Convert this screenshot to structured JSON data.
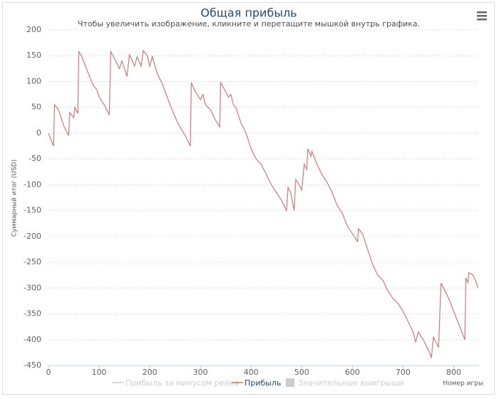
{
  "chart_data": {
    "type": "line",
    "title": "Общая прибыль",
    "subtitle": "Чтобы увеличить изображение, кликните и перетащите мышкой внутрь графика.",
    "y_label": "Суммарный итог (USD)",
    "x_label": "Номер игры",
    "x": [
      0,
      10,
      12,
      20,
      30,
      40,
      42,
      50,
      52,
      58,
      60,
      65,
      75,
      85,
      90,
      95,
      100,
      110,
      120,
      123,
      130,
      140,
      145,
      155,
      160,
      170,
      175,
      183,
      187,
      195,
      200,
      205,
      215,
      225,
      240,
      255,
      270,
      280,
      282,
      290,
      300,
      305,
      310,
      320,
      330,
      338,
      340,
      350,
      355,
      360,
      365,
      370,
      380,
      390,
      400,
      410,
      420,
      430,
      440,
      460,
      470,
      473,
      478,
      485,
      488,
      495,
      500,
      505,
      510,
      512,
      518,
      520,
      530,
      540,
      550,
      560,
      570,
      580,
      590,
      600,
      610,
      612,
      620,
      630,
      640,
      650,
      660,
      670,
      680,
      690,
      700,
      710,
      720,
      725,
      730,
      740,
      750,
      756,
      760,
      770,
      775,
      780,
      790,
      800,
      810,
      822,
      824,
      828,
      830,
      838,
      845,
      848
    ],
    "series": [
      {
        "name": "Прибыль",
        "color": "#c97a7a",
        "values": [
          0,
          -25,
          55,
          45,
          15,
          -5,
          40,
          30,
          50,
          38,
          158,
          150,
          125,
          100,
          90,
          85,
          70,
          55,
          35,
          158,
          145,
          125,
          140,
          110,
          152,
          130,
          148,
          130,
          160,
          150,
          130,
          148,
          115,
          95,
          55,
          20,
          -5,
          -25,
          98,
          80,
          65,
          75,
          55,
          45,
          25,
          12,
          98,
          80,
          70,
          75,
          55,
          50,
          20,
          0,
          -30,
          -50,
          -60,
          -80,
          -100,
          -130,
          -150,
          -105,
          -115,
          -150,
          -90,
          -100,
          -110,
          -60,
          -70,
          -30,
          -45,
          -35,
          -60,
          -80,
          -95,
          -115,
          -140,
          -155,
          -180,
          -195,
          -210,
          -185,
          -195,
          -225,
          -255,
          -275,
          -285,
          -305,
          -320,
          -330,
          -345,
          -365,
          -385,
          -405,
          -385,
          -400,
          -420,
          -435,
          -395,
          -415,
          -290,
          -300,
          -320,
          -345,
          -370,
          -400,
          -280,
          -290,
          -270,
          -275,
          -290,
          -300
        ]
      }
    ],
    "legend": [
      {
        "name": "Прибыль за минусом рейка",
        "visible": false,
        "symbol": "line"
      },
      {
        "name": "Прибыль",
        "visible": true,
        "symbol": "line"
      },
      {
        "name": "Значительные выигрыши",
        "visible": false,
        "symbol": "square"
      }
    ],
    "xlim": [
      0,
      850
    ],
    "xticks": [
      0,
      100,
      200,
      300,
      400,
      500,
      600,
      700,
      800
    ],
    "ylim": [
      -450,
      200
    ],
    "yticks": [
      200,
      150,
      100,
      50,
      0,
      -50,
      -100,
      -150,
      -200,
      -250,
      -300,
      -350,
      -400,
      -450
    ],
    "grid": true
  }
}
